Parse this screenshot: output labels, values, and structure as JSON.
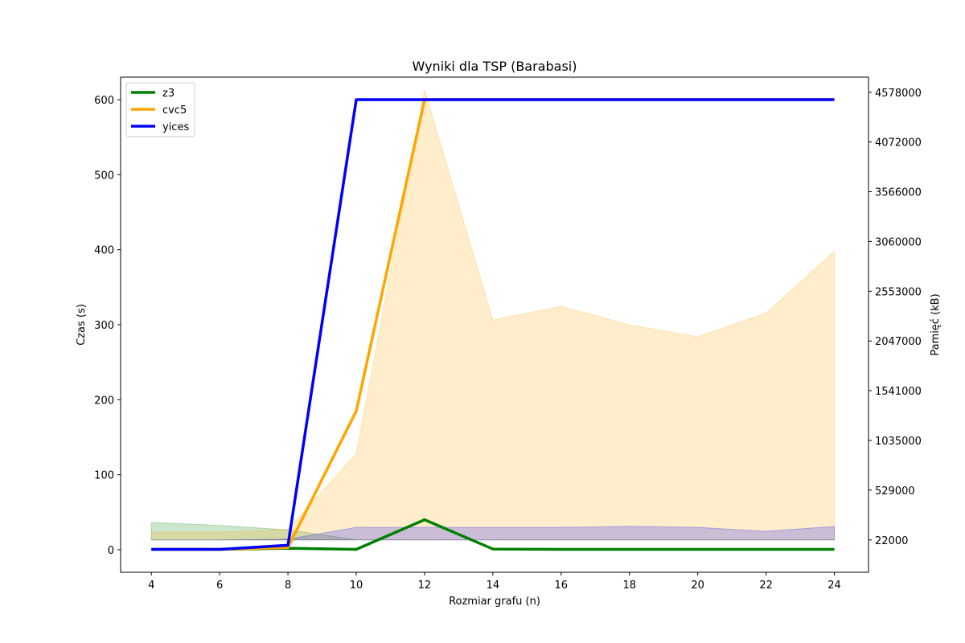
{
  "chart_data": {
    "type": "line",
    "title": "Wyniki dla TSP (Barabasi)",
    "xlabel": "Rozmiar grafu (n)",
    "ylabel": "Czas (s)",
    "ylabel_right": "Pamięć (kB)",
    "x": [
      4,
      6,
      8,
      10,
      12,
      14,
      16,
      18,
      20,
      22,
      24
    ],
    "x_ticks": [
      "4",
      "6",
      "8",
      "10",
      "12",
      "14",
      "16",
      "18",
      "20",
      "22",
      "24"
    ],
    "xlim": [
      3.1,
      25
    ],
    "ylim": [
      -30,
      630
    ],
    "y_ticks": [
      "0",
      "100",
      "200",
      "300",
      "400",
      "500",
      "600"
    ],
    "y_tick_values": [
      0,
      100,
      200,
      300,
      400,
      500,
      600
    ],
    "ylim_right": [
      -307000,
      4732000
    ],
    "y_ticks_right": [
      "22000",
      "529000",
      "1035000",
      "1541000",
      "2047000",
      "2553000",
      "3060000",
      "3566000",
      "4072000",
      "4578000"
    ],
    "y_tick_values_right": [
      22000,
      529000,
      1035000,
      1541000,
      2047000,
      2553000,
      3060000,
      3566000,
      4072000,
      4578000
    ],
    "legend_position": "top-left",
    "series": [
      {
        "name": "z3",
        "color": "#008000",
        "time": [
          0.5,
          0.5,
          2,
          0.5,
          40,
          1,
          0.5,
          0.5,
          0.5,
          0.5,
          0.5
        ],
        "memory": [
          200000,
          170000,
          125000,
          22000,
          22000,
          22000,
          22000,
          22000,
          22000,
          22000,
          22000
        ]
      },
      {
        "name": "cvc5",
        "color": "#ffa500",
        "time": [
          0.5,
          0.5,
          3,
          185,
          600,
          600,
          600,
          600,
          600,
          600,
          600
        ],
        "memory": [
          100000,
          100000,
          130000,
          900000,
          4600000,
          2260000,
          2400000,
          2210000,
          2090000,
          2330000,
          2960000
        ]
      },
      {
        "name": "yices",
        "color": "#0000ff",
        "time": [
          0.5,
          0.5,
          6,
          600,
          600,
          600,
          600,
          600,
          600,
          600,
          600
        ],
        "memory": [
          22000,
          22000,
          30000,
          150000,
          150000,
          150000,
          150000,
          160000,
          150000,
          110000,
          160000
        ]
      }
    ]
  }
}
